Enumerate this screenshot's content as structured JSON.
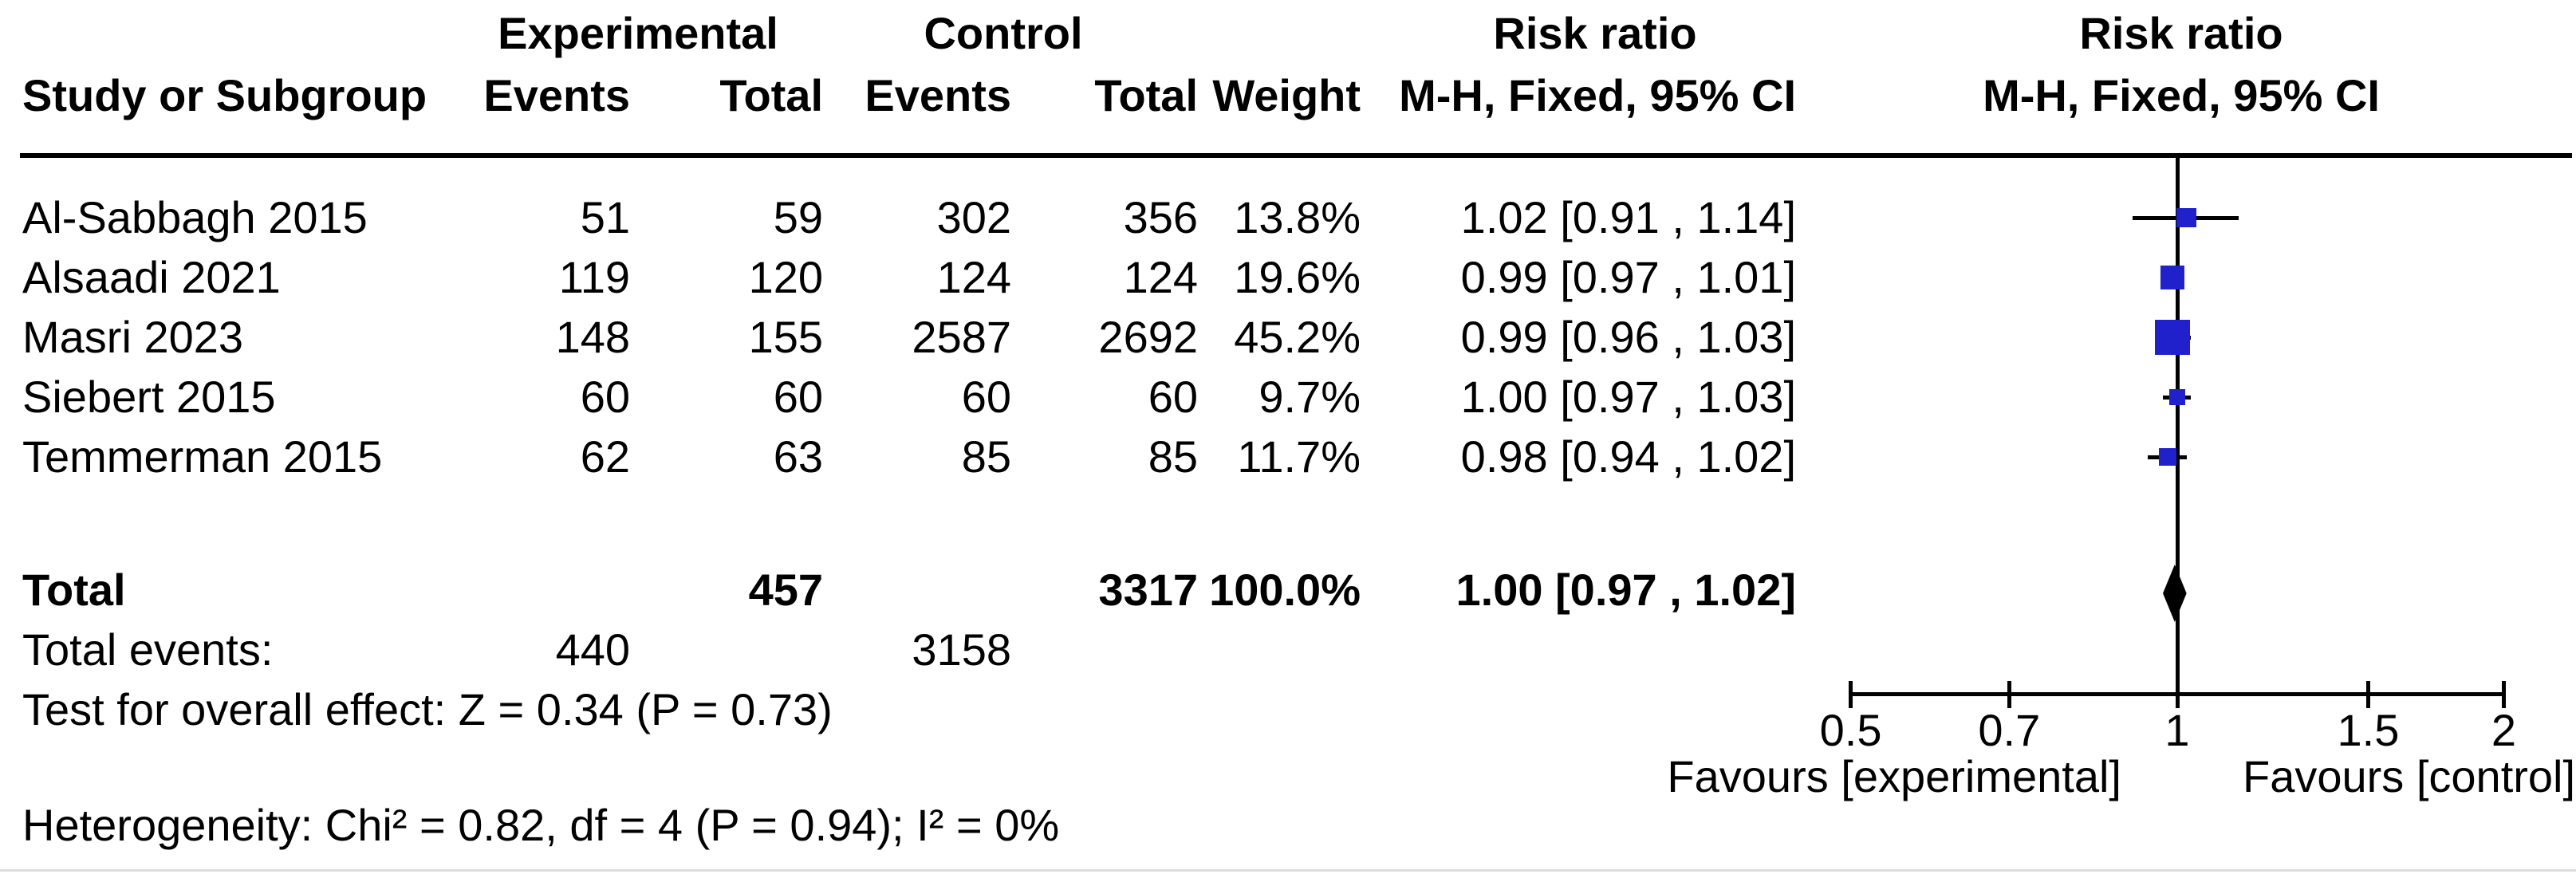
{
  "header": {
    "group_experimental": "Experimental",
    "group_control": "Control",
    "risk_ratio_stat_col": "Risk ratio",
    "risk_ratio_plot_col": "Risk ratio",
    "col_study": "Study or Subgroup",
    "col_exp_events": "Events",
    "col_exp_total": "Total",
    "col_ctrl_events": "Events",
    "col_ctrl_total": "Total",
    "col_weight": "Weight",
    "method_stat_col": "M-H, Fixed, 95% CI",
    "method_plot_col": "M-H, Fixed, 95% CI"
  },
  "studies": [
    {
      "name": "Al-Sabbagh 2015",
      "exp_events": "51",
      "exp_total": "59",
      "ctrl_events": "302",
      "ctrl_total": "356",
      "weight": "13.8%",
      "ci_text": "1.02 [0.91 , 1.14]",
      "rr": 1.02,
      "ci_low": 0.91,
      "ci_high": 1.14,
      "weight_pct": 13.8
    },
    {
      "name": "Alsaadi 2021",
      "exp_events": "119",
      "exp_total": "120",
      "ctrl_events": "124",
      "ctrl_total": "124",
      "weight": "19.6%",
      "ci_text": "0.99 [0.97 , 1.01]",
      "rr": 0.99,
      "ci_low": 0.97,
      "ci_high": 1.01,
      "weight_pct": 19.6
    },
    {
      "name": "Masri 2023",
      "exp_events": "148",
      "exp_total": "155",
      "ctrl_events": "2587",
      "ctrl_total": "2692",
      "weight": "45.2%",
      "ci_text": "0.99 [0.96 , 1.03]",
      "rr": 0.99,
      "ci_low": 0.96,
      "ci_high": 1.03,
      "weight_pct": 45.2
    },
    {
      "name": "Siebert 2015",
      "exp_events": "60",
      "exp_total": "60",
      "ctrl_events": "60",
      "ctrl_total": "60",
      "weight": "9.7%",
      "ci_text": "1.00 [0.97 , 1.03]",
      "rr": 1.0,
      "ci_low": 0.97,
      "ci_high": 1.03,
      "weight_pct": 9.7
    },
    {
      "name": "Temmerman 2015",
      "exp_events": "62",
      "exp_total": "63",
      "ctrl_events": "85",
      "ctrl_total": "85",
      "weight": "11.7%",
      "ci_text": "0.98 [0.94 , 1.02]",
      "rr": 0.98,
      "ci_low": 0.94,
      "ci_high": 1.02,
      "weight_pct": 11.7
    }
  ],
  "total_row": {
    "label": "Total",
    "exp_total": "457",
    "ctrl_total": "3317",
    "weight": "100.0%",
    "ci_text": "1.00 [0.97 , 1.02]",
    "rr": 1.0,
    "ci_low": 0.97,
    "ci_high": 1.02
  },
  "total_events_row": {
    "label": "Total events:",
    "exp_events": "440",
    "ctrl_events": "3158"
  },
  "overall_effect_text": "Test for overall effect: Z = 0.34 (P = 0.73)",
  "heterogeneity_text": "Heterogeneity: Chi² = 0.82, df = 4 (P = 0.94); I² = 0%",
  "plot": {
    "axis_ticks": [
      {
        "value": 0.5,
        "label": "0.5"
      },
      {
        "value": 0.7,
        "label": "0.7"
      },
      {
        "value": 1,
        "label": "1"
      },
      {
        "value": 1.5,
        "label": "1.5"
      },
      {
        "value": 2,
        "label": "2"
      }
    ],
    "favours_left": "Favours [experimental]",
    "favours_right": "Favours [control]",
    "square_color": "#2121cc",
    "line_color": "#000000",
    "scale": "log",
    "axis_range": [
      0.5,
      2
    ]
  },
  "chart_data": {
    "type": "scatter",
    "subtype": "forest_plot_risk_ratio_MH_fixed",
    "title": "Risk ratio — M-H, Fixed, 95% CI",
    "x_scale": "log",
    "x_range": [
      0.5,
      2
    ],
    "x_ticks": [
      0.5,
      0.7,
      1,
      1.5,
      2
    ],
    "x_axis_annotations": [
      "Favours [experimental]",
      "Favours [control]"
    ],
    "categories": [
      "Al-Sabbagh 2015",
      "Alsaadi 2021",
      "Masri 2023",
      "Siebert 2015",
      "Temmerman 2015"
    ],
    "series": [
      {
        "name": "risk_ratio",
        "values": [
          1.02,
          0.99,
          0.99,
          1.0,
          0.98
        ]
      },
      {
        "name": "ci_low",
        "values": [
          0.91,
          0.97,
          0.96,
          0.97,
          0.94
        ]
      },
      {
        "name": "ci_high",
        "values": [
          1.14,
          1.01,
          1.03,
          1.03,
          1.02
        ]
      },
      {
        "name": "weight_pct",
        "values": [
          13.8,
          19.6,
          45.2,
          9.7,
          11.7
        ]
      },
      {
        "name": "experimental_events",
        "values": [
          51,
          119,
          148,
          60,
          62
        ]
      },
      {
        "name": "experimental_total",
        "values": [
          59,
          120,
          155,
          60,
          63
        ]
      },
      {
        "name": "control_events",
        "values": [
          302,
          124,
          2587,
          60,
          85
        ]
      },
      {
        "name": "control_total",
        "values": [
          356,
          124,
          2692,
          60,
          85
        ]
      }
    ],
    "summary": {
      "risk_ratio": 1.0,
      "ci_low": 0.97,
      "ci_high": 1.02,
      "weight_pct": 100.0,
      "experimental_total": 457,
      "control_total": 3317,
      "experimental_events": 440,
      "control_events": 3158,
      "z": 0.34,
      "p": 0.73,
      "chi2": 0.82,
      "df": 4,
      "chi2_p": 0.94,
      "i2_pct": 0
    }
  }
}
